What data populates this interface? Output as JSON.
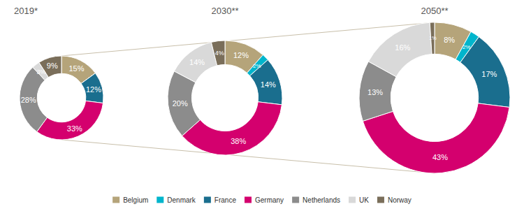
{
  "chart_data": [
    {
      "type": "pie",
      "title": "2019*",
      "categories": [
        "Belgium",
        "Denmark",
        "France",
        "Germany",
        "Netherlands",
        "UK",
        "Norway"
      ],
      "values": [
        15,
        0,
        12,
        33,
        28,
        3,
        9
      ],
      "value_labels": [
        "15%",
        null,
        "12%",
        "33%",
        "28%",
        "3%",
        "9%"
      ],
      "colors": [
        "#b5a47a",
        "#00b5cc",
        "#1a6e8e",
        "#d4006e",
        "#8c8c8c",
        "#d9d9d9",
        "#7a6e5a"
      ],
      "data_labels": true,
      "legend": "bottom"
    },
    {
      "type": "pie",
      "title": "2030**",
      "categories": [
        "Belgium",
        "Denmark",
        "France",
        "Germany",
        "Netherlands",
        "UK",
        "Norway"
      ],
      "values": [
        12,
        2,
        14,
        38,
        20,
        14,
        4
      ],
      "value_labels": [
        "12%",
        "2%",
        "14%",
        "38%",
        "20%",
        "14%",
        "4%"
      ],
      "colors": [
        "#b5a47a",
        "#00b5cc",
        "#1a6e8e",
        "#d4006e",
        "#8c8c8c",
        "#d9d9d9",
        "#7a6e5a"
      ],
      "data_labels": true
    },
    {
      "type": "pie",
      "title": "2050**",
      "categories": [
        "Belgium",
        "Denmark",
        "France",
        "Germany",
        "Netherlands",
        "UK",
        "Norway"
      ],
      "values": [
        8,
        2,
        17,
        43,
        13,
        16,
        1
      ],
      "value_labels": [
        "8%",
        "2%",
        "17%",
        "43%",
        "13%",
        "16%",
        "1%"
      ],
      "colors": [
        "#b5a47a",
        "#00b5cc",
        "#1a6e8e",
        "#d4006e",
        "#8c8c8c",
        "#d9d9d9",
        "#7a6e5a"
      ],
      "data_labels": true
    }
  ]
}
